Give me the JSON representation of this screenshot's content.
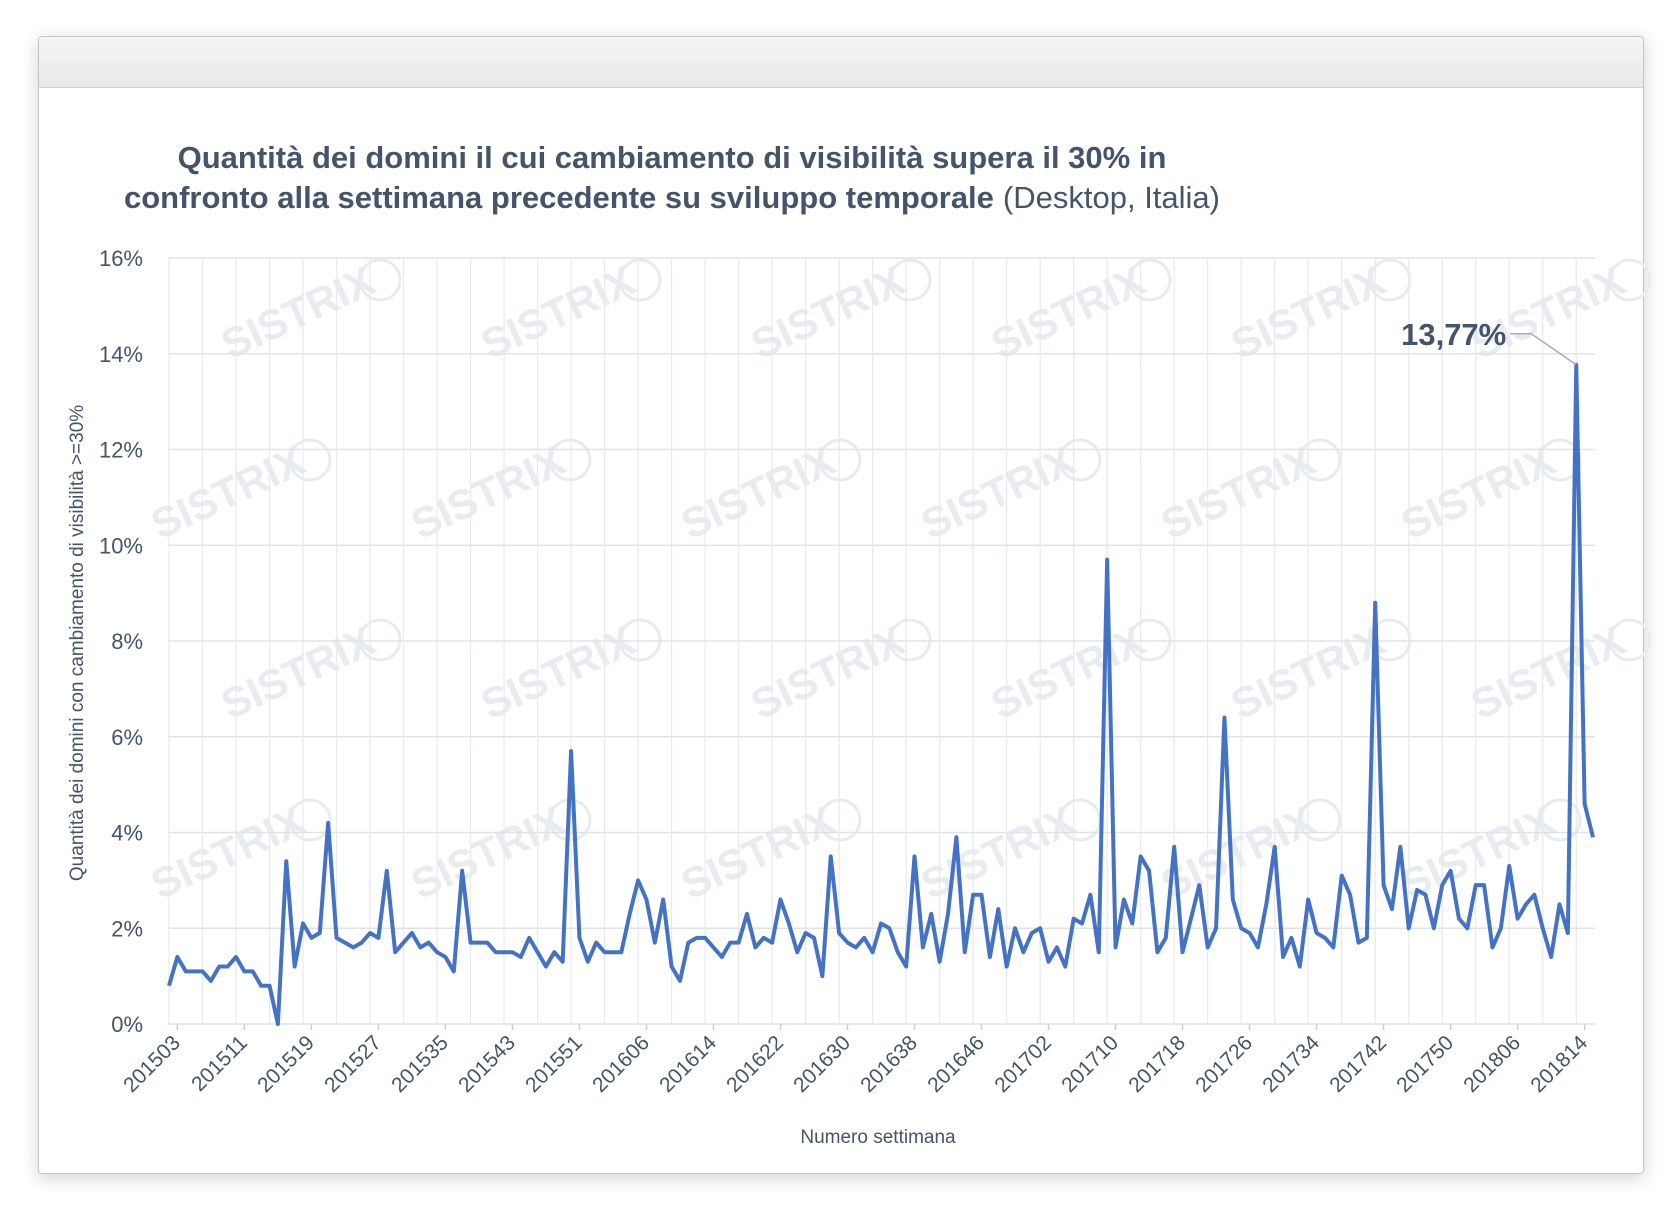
{
  "window": {
    "title": ""
  },
  "chart_data": {
    "type": "line",
    "title_main_line1": "Quantità dei domini il cui cambiamento di visibilità supera il 30% in",
    "title_main_line2": "confronto alla settimana precedente su sviluppo temporale",
    "title_suffix": "(Desktop, Italia)",
    "xlabel": "Numero settimana",
    "ylabel": "Quantità dei domini con cambiamento di visibilità >=30%",
    "ylim": [
      0,
      16
    ],
    "y_ticks": [
      "0%",
      "2%",
      "4%",
      "6%",
      "8%",
      "10%",
      "12%",
      "14%",
      "16%"
    ],
    "x_tick_labels": [
      "201503",
      "201511",
      "201519",
      "201527",
      "201535",
      "201543",
      "201551",
      "201606",
      "201614",
      "201622",
      "201630",
      "201638",
      "201646",
      "201702",
      "201710",
      "201718",
      "201726",
      "201734",
      "201742",
      "201750",
      "201806",
      "201814"
    ],
    "grid": true,
    "watermark": "SISTRIX",
    "annotation": {
      "label": "13,77%",
      "value": 13.77
    },
    "series": [
      {
        "color": "#4472c4",
        "values": [
          0.8,
          1.4,
          1.1,
          1.1,
          1.1,
          0.9,
          1.2,
          1.2,
          1.4,
          1.1,
          1.1,
          0.8,
          0.8,
          0.0,
          3.4,
          1.2,
          2.1,
          1.8,
          1.9,
          4.2,
          1.8,
          1.7,
          1.6,
          1.7,
          1.9,
          1.8,
          3.2,
          1.5,
          1.7,
          1.9,
          1.6,
          1.7,
          1.5,
          1.4,
          1.1,
          3.2,
          1.7,
          1.7,
          1.7,
          1.5,
          1.5,
          1.5,
          1.4,
          1.8,
          1.5,
          1.2,
          1.5,
          1.3,
          5.7,
          1.8,
          1.3,
          1.7,
          1.5,
          1.5,
          1.5,
          2.3,
          3.0,
          2.6,
          1.7,
          2.6,
          1.2,
          0.9,
          1.7,
          1.8,
          1.8,
          1.6,
          1.4,
          1.7,
          1.7,
          2.3,
          1.6,
          1.8,
          1.7,
          2.6,
          2.1,
          1.5,
          1.9,
          1.8,
          1.0,
          3.5,
          1.9,
          1.7,
          1.6,
          1.8,
          1.5,
          2.1,
          2.0,
          1.5,
          1.2,
          3.5,
          1.6,
          2.3,
          1.3,
          2.3,
          3.9,
          1.5,
          2.7,
          2.7,
          1.4,
          2.4,
          1.2,
          2.0,
          1.5,
          1.9,
          2.0,
          1.3,
          1.6,
          1.2,
          2.2,
          2.1,
          2.7,
          1.5,
          9.7,
          1.6,
          2.6,
          2.1,
          3.5,
          3.2,
          1.5,
          1.8,
          3.7,
          1.5,
          2.2,
          2.9,
          1.6,
          2.0,
          6.4,
          2.6,
          2.0,
          1.9,
          1.6,
          2.5,
          3.7,
          1.4,
          1.8,
          1.2,
          2.6,
          1.9,
          1.8,
          1.6,
          3.1,
          2.7,
          1.7,
          1.8,
          8.8,
          2.9,
          2.4,
          3.7,
          2.0,
          2.8,
          2.7,
          2.0,
          2.9,
          3.2,
          2.2,
          2.0,
          2.9,
          2.9,
          1.6,
          2.0,
          3.3,
          2.2,
          2.5,
          2.7,
          2.0,
          1.4,
          2.5,
          1.9,
          13.77,
          4.6,
          3.9
        ]
      }
    ]
  }
}
